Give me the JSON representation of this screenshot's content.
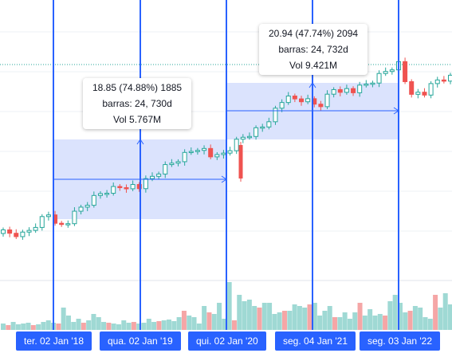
{
  "colors": {
    "up": "#26a69a",
    "down": "#ef5350",
    "vol_up": "#9fd9d4",
    "vol_down": "#f5a6a6",
    "measure_fill": "#dbe3fd",
    "measure_line": "#2962ff",
    "vertical_line": "#2962ff",
    "price_line": "#26a69a",
    "date_label_bg": "#2962ff",
    "grid": "#eef0f4"
  },
  "measurements": [
    {
      "change": "18.85 (74.88%) 1885",
      "bars": "barras: 24, 730d",
      "volume": "Vol 5.767M"
    },
    {
      "change": "20.94 (47.74%) 2094",
      "bars": "barras: 24, 732d",
      "volume": "Vol 9.421M"
    }
  ],
  "date_labels": [
    "ter. 02 Jan '18",
    "qua. 02 Jan '19",
    "qui. 02 Jan '20",
    "seg. 04 Jan '21",
    "seg. 03 Jan '22"
  ],
  "chart_data": {
    "type": "candlestick",
    "volume_heights": [
      8,
      6,
      10,
      7,
      8,
      9,
      6,
      7,
      10,
      12,
      9,
      8,
      28,
      18,
      10,
      14,
      9,
      12,
      20,
      16,
      10,
      9,
      8,
      7,
      12,
      9,
      10,
      8,
      9,
      14,
      10,
      11,
      12,
      13,
      11,
      16,
      24,
      18,
      16,
      8,
      30,
      22,
      20,
      34,
      14,
      60,
      12,
      44,
      36,
      38,
      30,
      28,
      34,
      34,
      20,
      22,
      24,
      24,
      32,
      30,
      28,
      32,
      34,
      18,
      24,
      30,
      16,
      16,
      22,
      14,
      22,
      34,
      18,
      26,
      18,
      20,
      18,
      36,
      44,
      34,
      22,
      24,
      30,
      28,
      16,
      14,
      44,
      28,
      46,
      32
    ]
  }
}
